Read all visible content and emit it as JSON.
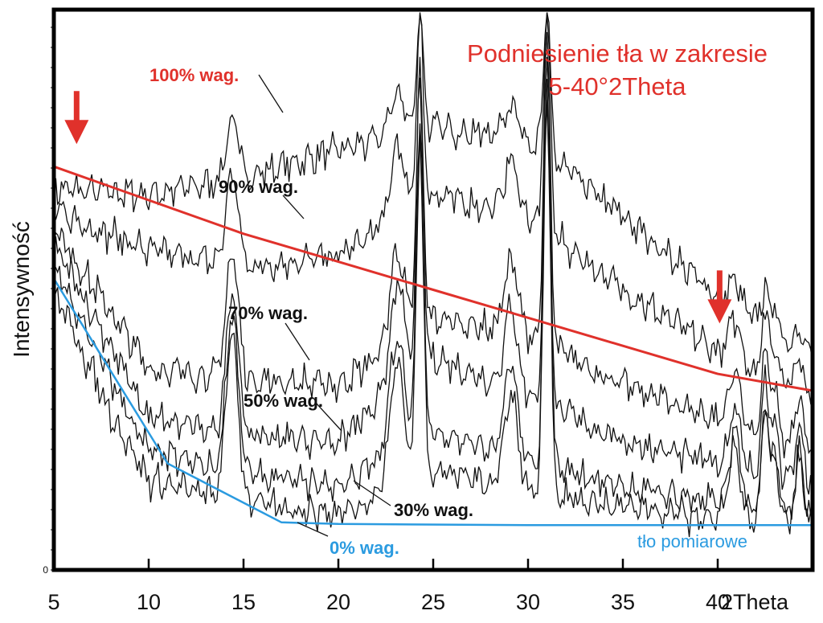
{
  "chart_data": {
    "type": "line",
    "title_lines": [
      "Podniesienie tła w zakresie",
      "5-40°2Theta"
    ],
    "xlabel": "2Theta",
    "ylabel": "Intensywność",
    "xlim": [
      5,
      45
    ],
    "ylim": [
      0,
      100
    ],
    "x_ticks": [
      5,
      10,
      15,
      20,
      25,
      30,
      35,
      40
    ],
    "x_tick_labels": [
      "5",
      "10",
      "15",
      "20",
      "25",
      "30",
      "35",
      "40"
    ],
    "y_tick_labels": [
      "0"
    ],
    "peaks": [
      {
        "x": 14.4,
        "w": 0.32,
        "h": 30
      },
      {
        "x": 23.1,
        "w": 0.38,
        "h": 22
      },
      {
        "x": 24.3,
        "w": 0.18,
        "h": 60
      },
      {
        "x": 29.1,
        "w": 0.35,
        "h": 17
      },
      {
        "x": 31.0,
        "w": 0.18,
        "h": 72
      },
      {
        "x": 40.9,
        "w": 0.3,
        "h": 13
      },
      {
        "x": 42.5,
        "w": 0.18,
        "h": 20
      },
      {
        "x": 43.0,
        "w": 0.2,
        "h": 11
      },
      {
        "x": 44.3,
        "w": 0.2,
        "h": 12
      }
    ],
    "series": [
      {
        "name": "100% wag.",
        "label_color": "#e0312b",
        "peak_scale": 0.35,
        "baseline": [
          [
            5,
            68
          ],
          [
            10,
            67
          ],
          [
            15,
            70
          ],
          [
            20,
            75
          ],
          [
            25,
            79
          ],
          [
            30,
            77
          ],
          [
            35,
            63
          ],
          [
            40,
            49
          ],
          [
            45,
            38
          ]
        ]
      },
      {
        "name": "90% wag.",
        "label_color": "#111111",
        "peak_scale": 0.55,
        "baseline": [
          [
            5,
            64
          ],
          [
            10,
            57
          ],
          [
            15,
            54
          ],
          [
            20,
            56
          ],
          [
            25,
            67
          ],
          [
            30,
            63
          ],
          [
            35,
            50
          ],
          [
            40,
            39
          ],
          [
            45,
            31
          ]
        ]
      },
      {
        "name": "70% wag.",
        "label_color": "#111111",
        "peak_scale": 0.75,
        "baseline": [
          [
            5,
            61
          ],
          [
            8,
            46
          ],
          [
            10,
            36
          ],
          [
            15,
            34
          ],
          [
            20,
            33
          ],
          [
            25,
            45
          ],
          [
            30,
            42
          ],
          [
            35,
            33
          ],
          [
            40,
            27
          ],
          [
            45,
            21
          ]
        ]
      },
      {
        "name": "50% wag.",
        "label_color": "#111111",
        "peak_scale": 0.85,
        "baseline": [
          [
            5,
            58
          ],
          [
            8,
            40
          ],
          [
            10,
            27
          ],
          [
            15,
            24
          ],
          [
            20,
            23
          ],
          [
            25,
            38
          ],
          [
            30,
            31
          ],
          [
            35,
            23
          ],
          [
            40,
            19
          ],
          [
            45,
            15
          ]
        ]
      },
      {
        "name": "30% wag.",
        "label_color": "#111111",
        "peak_scale": 0.95,
        "baseline": [
          [
            5,
            54
          ],
          [
            8,
            34
          ],
          [
            10,
            21
          ],
          [
            15,
            17
          ],
          [
            20,
            15
          ],
          [
            25,
            25
          ],
          [
            30,
            19
          ],
          [
            35,
            15
          ],
          [
            40,
            12
          ],
          [
            45,
            10
          ]
        ]
      },
      {
        "name": "0% wag.",
        "label_color": "#2b9be0",
        "peak_scale": 1.0,
        "baseline": [
          [
            5,
            50
          ],
          [
            8,
            28
          ],
          [
            10,
            16
          ],
          [
            15,
            12
          ],
          [
            20,
            10
          ],
          [
            25,
            18
          ],
          [
            30,
            14
          ],
          [
            35,
            11
          ],
          [
            40,
            9
          ],
          [
            45,
            8
          ]
        ]
      }
    ],
    "background_line": {
      "name": "tło pomiarowe",
      "color": "#2b9be0",
      "points": [
        [
          5,
          52
        ],
        [
          11,
          19
        ],
        [
          17,
          8.5
        ],
        [
          20,
          8.2
        ],
        [
          30,
          8
        ],
        [
          40,
          8
        ],
        [
          45,
          8
        ]
      ]
    },
    "trend_line": {
      "color": "#e0312b",
      "points": [
        [
          5,
          72
        ],
        [
          10,
          66
        ],
        [
          15,
          60
        ],
        [
          20,
          55
        ],
        [
          25,
          50
        ],
        [
          30,
          45
        ],
        [
          35,
          40
        ],
        [
          40,
          35
        ],
        [
          45,
          32
        ]
      ]
    },
    "arrows": [
      {
        "x": 6.2,
        "y_tip": 76
      },
      {
        "x": 40.1,
        "y_tip": 44
      }
    ]
  }
}
